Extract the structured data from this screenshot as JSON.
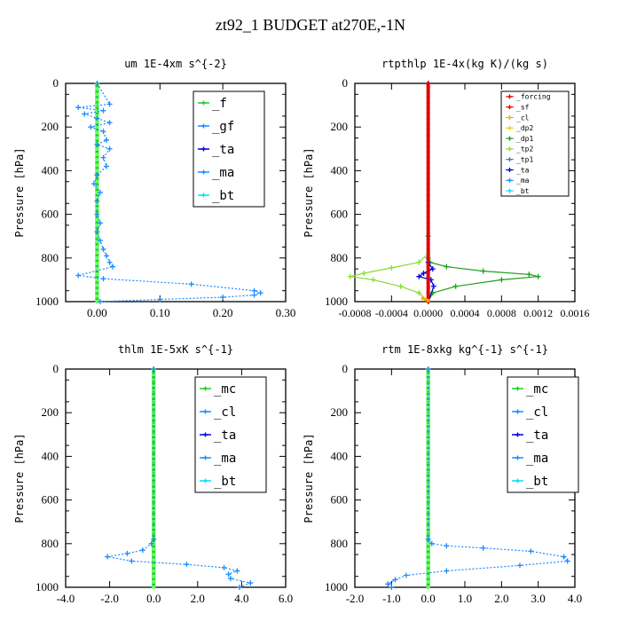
{
  "title": "zt92_1  BUDGET at270E,-1N",
  "colors": {
    "green": "#22cc22",
    "blue_dash": "#1a8cff",
    "red": "#e00000",
    "cyan": "#00e0ff",
    "navy": "#0000dd",
    "orange": "#ffaa00",
    "yellow": "#e8d000",
    "dkgreen": "#1aa01a",
    "lime": "#88dd33",
    "steel": "#3a78b8"
  },
  "chart_data": [
    {
      "id": "um",
      "type": "line",
      "title": "um   1E-4xm s^{-2}",
      "ylabel": "Pressure [hPa]",
      "xlim": [
        -0.05,
        0.3
      ],
      "ylim": [
        1000,
        0
      ],
      "xticks": [
        "0.00",
        "0.10",
        "0.20",
        "0.30"
      ],
      "xtick_values": [
        0.0,
        0.1,
        0.2,
        0.3
      ],
      "yticks": [
        "0",
        "200",
        "400",
        "600",
        "800",
        "1000"
      ],
      "ytick_values": [
        0,
        200,
        400,
        600,
        800,
        1000
      ],
      "legend": {
        "position": "top-right",
        "entries": [
          "_f",
          "_gf",
          "_ta",
          "_ma",
          "_bt"
        ]
      },
      "series": [
        {
          "name": "_gf",
          "color": "blue_dash",
          "style": "dotted",
          "x": [
            0.0,
            0.02,
            -0.03,
            0.01,
            -0.02,
            0.0,
            0.02,
            -0.01,
            0.01,
            0.015,
            0.0,
            0.02,
            0.01,
            0.015,
            0.0,
            -0.005,
            0.005,
            0.0,
            0.0,
            0.005,
            0.0,
            0.005,
            0.01,
            0.015,
            0.02,
            0.025,
            -0.03,
            0.01,
            0.15,
            0.25,
            0.26,
            0.25,
            0.2,
            0.1,
            0.005
          ],
          "y": [
            0,
            95,
            110,
            125,
            140,
            160,
            180,
            200,
            220,
            260,
            280,
            300,
            340,
            380,
            420,
            460,
            500,
            540,
            600,
            640,
            680,
            720,
            760,
            790,
            820,
            840,
            880,
            895,
            920,
            950,
            960,
            970,
            980,
            990,
            1000
          ]
        }
      ]
    },
    {
      "id": "rtpthlp",
      "type": "line",
      "title": "rtpthlp   1E-4x(kg K)/(kg s)",
      "ylabel": "Pressure [hPa]",
      "xlim": [
        -0.0008,
        0.0016
      ],
      "ylim": [
        1000,
        0
      ],
      "xticks": [
        "-0.0008",
        "-0.0004",
        "0.0000",
        "0.0004",
        "0.0008",
        "0.0012",
        "0.0016"
      ],
      "xtick_values": [
        -0.0008,
        -0.0004,
        0.0,
        0.0004,
        0.0008,
        0.0012,
        0.0016
      ],
      "yticks": [
        "0",
        "200",
        "400",
        "600",
        "800",
        "1000"
      ],
      "ytick_values": [
        0,
        200,
        400,
        600,
        800,
        1000
      ],
      "legend": {
        "position": "top-right",
        "entries": [
          "_forcing",
          "_sf",
          "_cl",
          "_dp2",
          "_dp1",
          "_tp2",
          "_tp1",
          "_ta",
          "_ma",
          "_bt"
        ]
      },
      "series": [
        {
          "name": "_dp1",
          "color": "dkgreen",
          "style": "solid",
          "x": [
            0.0,
            0.0,
            0.0,
            2e-05,
            0.0002,
            0.0006,
            0.0011,
            0.0012,
            0.0008,
            0.0003,
            5e-05,
            0.0
          ],
          "y": [
            0,
            700,
            800,
            820,
            840,
            860,
            875,
            885,
            900,
            930,
            960,
            1000
          ]
        },
        {
          "name": "_tp2",
          "color": "lime",
          "style": "solid",
          "x": [
            0.0,
            0.0,
            -0.0001,
            -0.0004,
            -0.0007,
            -0.00085,
            -0.0006,
            -0.0003,
            -0.0001,
            0.0
          ],
          "y": [
            0,
            780,
            820,
            845,
            870,
            885,
            900,
            930,
            960,
            1000
          ]
        },
        {
          "name": "_ta",
          "color": "navy",
          "style": "solid",
          "x": [
            0.0,
            0.0,
            5e-05,
            -5e-05,
            -0.0001,
            3e-05,
            6e-05,
            0.0
          ],
          "y": [
            0,
            820,
            850,
            870,
            885,
            900,
            930,
            1000
          ]
        },
        {
          "name": "_forcing",
          "color": "red",
          "style": "solid",
          "x": [
            0.0,
            0.0
          ],
          "y": [
            0,
            1000
          ]
        }
      ]
    },
    {
      "id": "thlm",
      "type": "line",
      "title": "thlm   1E-5xK s^{-1}",
      "ylabel": "Pressure [hPa]",
      "xlim": [
        -4.0,
        6.0
      ],
      "ylim": [
        1000,
        0
      ],
      "xticks": [
        "-4.0",
        "-2.0",
        "0.0",
        "2.0",
        "4.0",
        "6.0"
      ],
      "xtick_values": [
        -4,
        -2,
        0,
        2,
        4,
        6
      ],
      "yticks": [
        "0",
        "200",
        "400",
        "600",
        "800",
        "1000"
      ],
      "ytick_values": [
        0,
        200,
        400,
        600,
        800,
        1000
      ],
      "legend": {
        "position": "top-right",
        "entries": [
          "_mc",
          "_cl",
          "_ta",
          "_ma",
          "_bt"
        ]
      },
      "series": [
        {
          "name": "_cl",
          "color": "blue_dash",
          "style": "dotted",
          "x": [
            0.0,
            0.0,
            -0.1,
            -0.5,
            -1.2,
            -2.1,
            -1.0,
            1.5,
            3.2,
            3.8,
            3.4,
            3.5,
            4.4,
            3.9
          ],
          "y": [
            0,
            780,
            800,
            830,
            845,
            860,
            880,
            895,
            910,
            925,
            940,
            960,
            980,
            1000
          ]
        }
      ]
    },
    {
      "id": "rtm",
      "type": "line",
      "title": "rtm   1E-8xkg kg^{-1} s^{-1}",
      "ylabel": "Pressure [hPa]",
      "xlim": [
        -2.0,
        4.0
      ],
      "ylim": [
        1000,
        0
      ],
      "xticks": [
        "-2.0",
        "-1.0",
        "0.0",
        "1.0",
        "2.0",
        "3.0",
        "4.0"
      ],
      "xtick_values": [
        -2,
        -1,
        0,
        1,
        2,
        3,
        4
      ],
      "yticks": [
        "0",
        "200",
        "400",
        "600",
        "800",
        "1000"
      ],
      "ytick_values": [
        0,
        200,
        400,
        600,
        800,
        1000
      ],
      "legend": {
        "position": "top-right",
        "entries": [
          "_mc",
          "_cl",
          "_ta",
          "_ma",
          "_bt"
        ]
      },
      "series": [
        {
          "name": "_cl",
          "color": "blue_dash",
          "style": "dotted",
          "x": [
            0.0,
            0.0,
            0.1,
            0.5,
            1.5,
            2.8,
            3.7,
            3.8,
            2.5,
            0.5,
            -0.6,
            -0.9,
            -1.1,
            -1.0
          ],
          "y": [
            0,
            780,
            800,
            810,
            820,
            835,
            860,
            880,
            900,
            925,
            945,
            965,
            985,
            1000
          ]
        }
      ]
    }
  ]
}
